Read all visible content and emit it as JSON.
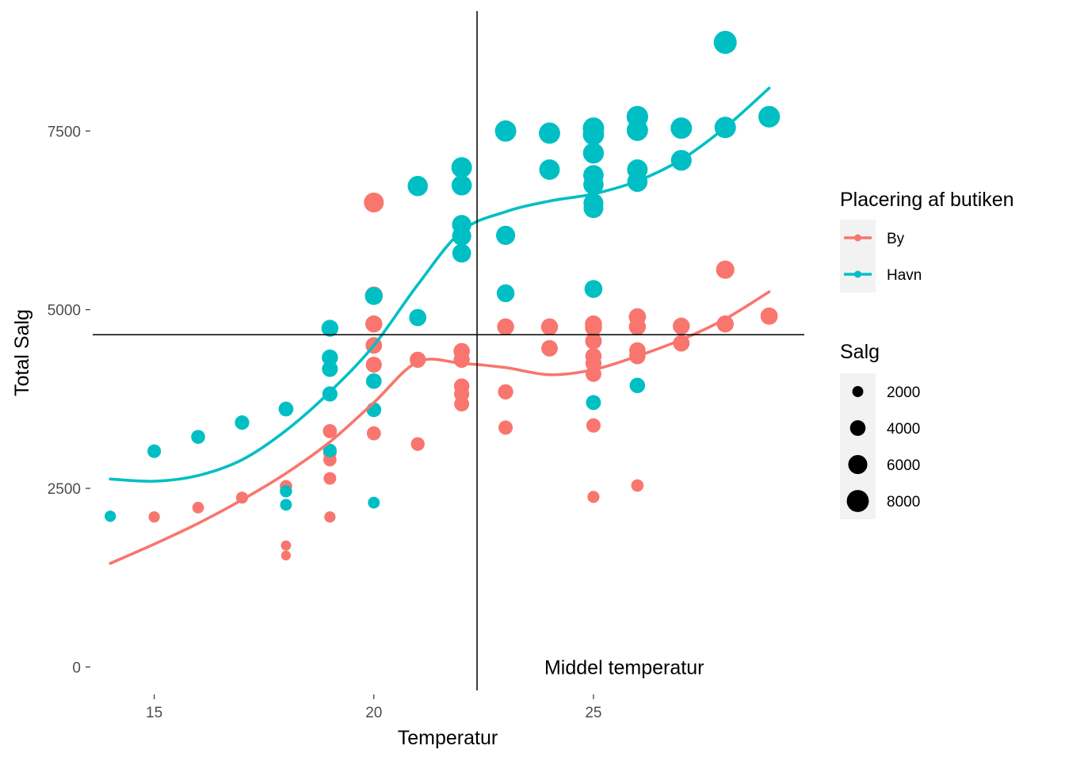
{
  "chart_data": {
    "type": "scatter",
    "xlabel": "Temperatur",
    "ylabel": "Total Salg",
    "xlim": [
      13.6,
      29.8
    ],
    "ylim": [
      -350,
      9200
    ],
    "x_ticks": [
      15,
      20,
      25
    ],
    "y_ticks": [
      0,
      2500,
      5000,
      7500
    ],
    "grid": false,
    "reference_lines": {
      "vertical_x": 22.35,
      "horizontal_y": 4650
    },
    "annotation": {
      "text": "Middel temperatur",
      "x": 25.7,
      "y": 0
    },
    "color_legend": {
      "title": "Placering af butiken",
      "position": "right",
      "entries": [
        {
          "label": "By",
          "color": "#F8766D"
        },
        {
          "label": "Havn",
          "color": "#00BFC4"
        }
      ]
    },
    "size_legend": {
      "title": "Salg",
      "position": "right",
      "entries": [
        {
          "label": "2000",
          "value": 2000
        },
        {
          "label": "4000",
          "value": 4000
        },
        {
          "label": "6000",
          "value": 6000
        },
        {
          "label": "8000",
          "value": 8000
        }
      ]
    },
    "series": [
      {
        "color": "#F8766D",
        "points": [
          [
            15,
            2100,
            2100
          ],
          [
            16,
            2230,
            2230
          ],
          [
            17,
            2370,
            2370
          ],
          [
            18,
            2530,
            2530
          ],
          [
            18,
            1700,
            1700
          ],
          [
            18,
            1560,
            1560
          ],
          [
            19,
            3300,
            3300
          ],
          [
            19,
            3000,
            3000
          ],
          [
            19,
            2900,
            2900
          ],
          [
            19,
            2640,
            2640
          ],
          [
            19,
            2100,
            2100
          ],
          [
            20,
            6500,
            6500
          ],
          [
            20,
            5200,
            5200
          ],
          [
            20,
            4800,
            4800
          ],
          [
            20,
            4500,
            4500
          ],
          [
            20,
            4230,
            4230
          ],
          [
            20,
            3270,
            3270
          ],
          [
            21,
            4300,
            4300
          ],
          [
            21,
            3120,
            3120
          ],
          [
            22,
            4420,
            4420
          ],
          [
            22,
            4300,
            4300
          ],
          [
            22,
            3930,
            3930
          ],
          [
            22,
            3820,
            3820
          ],
          [
            22,
            3680,
            3680
          ],
          [
            23,
            4760,
            4760
          ],
          [
            23,
            3850,
            3850
          ],
          [
            23,
            3350,
            3350
          ],
          [
            24,
            4760,
            4760
          ],
          [
            24,
            4460,
            4460
          ],
          [
            25,
            4800,
            4800
          ],
          [
            25,
            4750,
            4750
          ],
          [
            25,
            4560,
            4560
          ],
          [
            25,
            4350,
            4350
          ],
          [
            25,
            4250,
            4250
          ],
          [
            25,
            4100,
            4100
          ],
          [
            25,
            3380,
            3380
          ],
          [
            25,
            2380,
            2380
          ],
          [
            26,
            4900,
            4900
          ],
          [
            26,
            4760,
            4760
          ],
          [
            26,
            4430,
            4430
          ],
          [
            26,
            4350,
            4350
          ],
          [
            26,
            2540,
            2540
          ],
          [
            27,
            4770,
            4770
          ],
          [
            27,
            4530,
            4530
          ],
          [
            28,
            5560,
            5560
          ],
          [
            28,
            4800,
            4800
          ],
          [
            29,
            4910,
            4910
          ]
        ],
        "smooth": [
          [
            14,
            1450
          ],
          [
            15,
            1720
          ],
          [
            16,
            2010
          ],
          [
            17,
            2340
          ],
          [
            18,
            2710
          ],
          [
            19,
            3150
          ],
          [
            20,
            3700
          ],
          [
            21,
            4270
          ],
          [
            22,
            4250
          ],
          [
            23,
            4190
          ],
          [
            24,
            4090
          ],
          [
            25,
            4160
          ],
          [
            26,
            4350
          ],
          [
            27,
            4580
          ],
          [
            28,
            4870
          ],
          [
            29,
            5250
          ]
        ]
      },
      {
        "color": "#00BFC4",
        "points": [
          [
            14,
            2110,
            2110
          ],
          [
            15,
            3020,
            3020
          ],
          [
            16,
            3220,
            3220
          ],
          [
            17,
            3420,
            3420
          ],
          [
            18,
            3610,
            3610
          ],
          [
            18,
            2460,
            2460
          ],
          [
            18,
            2270,
            2270
          ],
          [
            19,
            4740,
            4740
          ],
          [
            19,
            4330,
            4330
          ],
          [
            19,
            4170,
            4170
          ],
          [
            19,
            3820,
            3820
          ],
          [
            19,
            3030,
            3030
          ],
          [
            20,
            5190,
            5190
          ],
          [
            20,
            4000,
            4000
          ],
          [
            20,
            3600,
            3600
          ],
          [
            20,
            2300,
            2300
          ],
          [
            21,
            6730,
            6730
          ],
          [
            21,
            4890,
            4890
          ],
          [
            22,
            6990,
            6990
          ],
          [
            22,
            6740,
            6740
          ],
          [
            22,
            6190,
            6190
          ],
          [
            22,
            6030,
            6030
          ],
          [
            22,
            5790,
            5790
          ],
          [
            23,
            7500,
            7500
          ],
          [
            23,
            6040,
            6040
          ],
          [
            23,
            5230,
            5230
          ],
          [
            24,
            7470,
            7470
          ],
          [
            24,
            6960,
            6960
          ],
          [
            25,
            7540,
            7540
          ],
          [
            25,
            7450,
            7450
          ],
          [
            25,
            7190,
            7190
          ],
          [
            25,
            6880,
            6880
          ],
          [
            25,
            6750,
            6750
          ],
          [
            25,
            6490,
            6490
          ],
          [
            25,
            6420,
            6420
          ],
          [
            25,
            5290,
            5290
          ],
          [
            25,
            3700,
            3700
          ],
          [
            26,
            7700,
            7700
          ],
          [
            26,
            7510,
            7510
          ],
          [
            26,
            6960,
            6960
          ],
          [
            26,
            6790,
            6790
          ],
          [
            26,
            3940,
            3940
          ],
          [
            27,
            7540,
            7540
          ],
          [
            27,
            7090,
            7090
          ],
          [
            28,
            8740,
            8740
          ],
          [
            28,
            7550,
            7550
          ],
          [
            29,
            7700,
            7700
          ]
        ],
        "smooth": [
          [
            14,
            2630
          ],
          [
            15,
            2600
          ],
          [
            16,
            2680
          ],
          [
            17,
            2900
          ],
          [
            18,
            3310
          ],
          [
            19,
            3850
          ],
          [
            20,
            4500
          ],
          [
            21,
            5350
          ],
          [
            22,
            6100
          ],
          [
            23,
            6370
          ],
          [
            24,
            6520
          ],
          [
            25,
            6620
          ],
          [
            26,
            6800
          ],
          [
            27,
            7100
          ],
          [
            28,
            7550
          ],
          [
            29,
            8100
          ]
        ]
      }
    ]
  }
}
